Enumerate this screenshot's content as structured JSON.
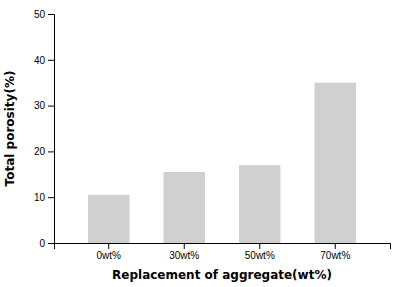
{
  "chart_data": {
    "type": "bar",
    "categories": [
      "0wt%",
      "30wt%",
      "50wt%",
      "70wt%"
    ],
    "values": [
      10.5,
      15.5,
      17.0,
      35.0
    ],
    "color": "#d0d0d0",
    "xlabel": "Replacement of aggregate(wt%)",
    "ylabel": "Total porosity(%)",
    "ylim": [
      0,
      50
    ],
    "yticks": [
      0,
      10,
      20,
      30,
      40,
      50
    ],
    "grid": false
  }
}
